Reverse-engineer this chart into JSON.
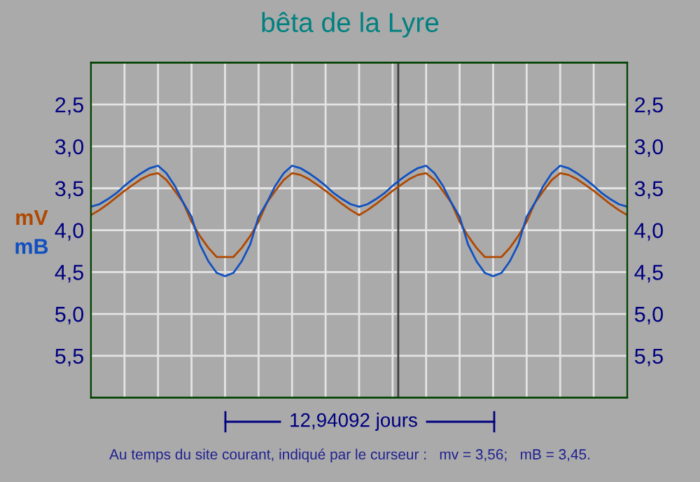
{
  "chart_data": {
    "type": "line",
    "title": "bêta de la Lyre",
    "categories": [
      null,
      null,
      null,
      null,
      null,
      null,
      null,
      null,
      null,
      null,
      null,
      null,
      null,
      null,
      null,
      null,
      null,
      null,
      null,
      null,
      null,
      null,
      null,
      null,
      null,
      null,
      null,
      null,
      null,
      null,
      null,
      null,
      null,
      null,
      null,
      null,
      null,
      null,
      null,
      null,
      null,
      null,
      null,
      null,
      null,
      null,
      null,
      null,
      null,
      null,
      null,
      null,
      null,
      null,
      null,
      null,
      null,
      null,
      null,
      null,
      null,
      null,
      null,
      null,
      null
    ],
    "series": [
      {
        "name": "mV",
        "color": "#b04800",
        "values": [
          3.82,
          3.76,
          3.69,
          3.61,
          3.53,
          3.46,
          3.39,
          3.34,
          3.32,
          3.4,
          3.53,
          3.67,
          3.9,
          4.07,
          4.21,
          4.32,
          4.32,
          4.32,
          4.21,
          4.07,
          3.9,
          3.67,
          3.53,
          3.4,
          3.32,
          3.34,
          3.39,
          3.46,
          3.53,
          3.61,
          3.69,
          3.76,
          3.82,
          3.76,
          3.69,
          3.61,
          3.53,
          3.46,
          3.39,
          3.34,
          3.32,
          3.4,
          3.53,
          3.67,
          3.9,
          4.07,
          4.21,
          4.32,
          4.32,
          4.32,
          4.21,
          4.07,
          3.9,
          3.67,
          3.53,
          3.4,
          3.32,
          3.34,
          3.39,
          3.46,
          3.53,
          3.61,
          3.69,
          3.76,
          3.82
        ]
      },
      {
        "name": "mB",
        "color": "#1050c0",
        "values": [
          3.72,
          3.69,
          3.63,
          3.56,
          3.47,
          3.39,
          3.32,
          3.26,
          3.23,
          3.32,
          3.47,
          3.67,
          3.84,
          4.17,
          4.37,
          4.51,
          4.55,
          4.51,
          4.37,
          4.17,
          3.84,
          3.67,
          3.47,
          3.32,
          3.23,
          3.26,
          3.32,
          3.39,
          3.47,
          3.56,
          3.63,
          3.69,
          3.72,
          3.69,
          3.63,
          3.56,
          3.47,
          3.39,
          3.32,
          3.26,
          3.23,
          3.32,
          3.47,
          3.67,
          3.84,
          4.17,
          4.37,
          4.51,
          4.55,
          4.51,
          4.37,
          4.17,
          3.84,
          3.67,
          3.47,
          3.32,
          3.23,
          3.26,
          3.32,
          3.39,
          3.47,
          3.56,
          3.63,
          3.69,
          3.72
        ]
      }
    ],
    "ylim": [
      6.0,
      2.0
    ],
    "yticks": [
      {
        "value": 2.5,
        "label": "2,5"
      },
      {
        "value": 3.0,
        "label": "3,0"
      },
      {
        "value": 3.5,
        "label": "3,5"
      },
      {
        "value": 4.0,
        "label": "4,0"
      },
      {
        "value": 4.5,
        "label": "4,5"
      },
      {
        "value": 5.0,
        "label": "5,0"
      },
      {
        "value": 5.5,
        "label": "5,5"
      }
    ],
    "y2lim": [
      6.0,
      2.0
    ],
    "y2ticks": [
      {
        "value": 2.5,
        "label": "2,5"
      },
      {
        "value": 3.0,
        "label": "3,0"
      },
      {
        "value": 3.5,
        "label": "3,5"
      },
      {
        "value": 4.0,
        "label": "4,0"
      },
      {
        "value": 4.5,
        "label": "4,5"
      },
      {
        "value": 5.0,
        "label": "5,0"
      },
      {
        "value": 5.5,
        "label": "5,5"
      }
    ],
    "tick_labels": "y",
    "grid": true,
    "legend": "left",
    "annotations": [
      "12,94092 jours",
      "Au temps du site courant, indiqué par le curseur :   mv = 3,56;   mB = 3,45."
    ]
  }
}
